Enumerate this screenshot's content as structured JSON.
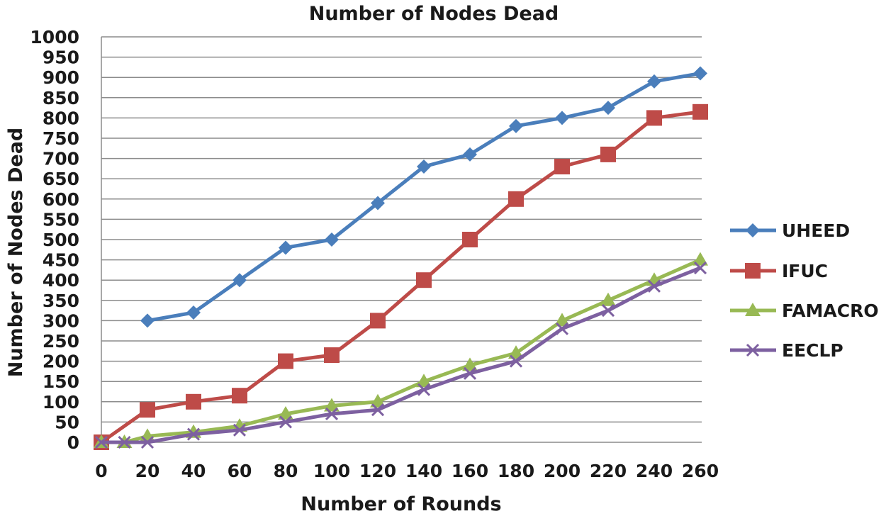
{
  "chart_data": {
    "type": "line",
    "title": "Number of Nodes Dead",
    "xlabel": "Number of Rounds",
    "ylabel": "Number of Nodes Dead",
    "x_ticks": [
      "0",
      "20",
      "40",
      "60",
      "80",
      "100",
      "120",
      "140",
      "160",
      "180",
      "200",
      "220",
      "240",
      "260"
    ],
    "y_ticks": [
      "0",
      "50",
      "100",
      "150",
      "200",
      "250",
      "300",
      "350",
      "400",
      "450",
      "500",
      "550",
      "600",
      "650",
      "700",
      "750",
      "800",
      "850",
      "900",
      "950",
      "1000"
    ],
    "xlim": [
      0,
      260
    ],
    "ylim": [
      0,
      1000
    ],
    "grid": "horizontal",
    "legend_position": "right",
    "series": [
      {
        "name": "UHEED",
        "color": "#4a7ebb",
        "marker": "diamond",
        "points": [
          [
            20,
            300
          ],
          [
            40,
            320
          ],
          [
            60,
            400
          ],
          [
            80,
            480
          ],
          [
            100,
            500
          ],
          [
            120,
            590
          ],
          [
            140,
            680
          ],
          [
            160,
            710
          ],
          [
            180,
            780
          ],
          [
            200,
            800
          ],
          [
            220,
            825
          ],
          [
            240,
            890
          ],
          [
            260,
            910
          ]
        ]
      },
      {
        "name": "IFUC",
        "color": "#be4b48",
        "marker": "square",
        "points": [
          [
            0,
            0
          ],
          [
            20,
            80
          ],
          [
            40,
            100
          ],
          [
            60,
            115
          ],
          [
            80,
            200
          ],
          [
            100,
            215
          ],
          [
            120,
            300
          ],
          [
            140,
            400
          ],
          [
            160,
            500
          ],
          [
            180,
            600
          ],
          [
            200,
            680
          ],
          [
            220,
            710
          ],
          [
            240,
            800
          ],
          [
            260,
            815
          ]
        ]
      },
      {
        "name": "FAMACRO",
        "color": "#98b954",
        "marker": "triangle",
        "points": [
          [
            0,
            0
          ],
          [
            10,
            0
          ],
          [
            20,
            15
          ],
          [
            40,
            25
          ],
          [
            60,
            40
          ],
          [
            80,
            70
          ],
          [
            100,
            90
          ],
          [
            120,
            100
          ],
          [
            140,
            150
          ],
          [
            160,
            190
          ],
          [
            180,
            220
          ],
          [
            200,
            300
          ],
          [
            220,
            350
          ],
          [
            240,
            400
          ],
          [
            260,
            450
          ]
        ]
      },
      {
        "name": "EECLP",
        "color": "#7d60a0",
        "marker": "x",
        "points": [
          [
            0,
            0
          ],
          [
            10,
            0
          ],
          [
            20,
            0
          ],
          [
            40,
            20
          ],
          [
            60,
            30
          ],
          [
            80,
            50
          ],
          [
            100,
            70
          ],
          [
            120,
            80
          ],
          [
            140,
            130
          ],
          [
            160,
            170
          ],
          [
            180,
            200
          ],
          [
            200,
            280
          ],
          [
            220,
            325
          ],
          [
            240,
            385
          ],
          [
            260,
            430
          ]
        ]
      }
    ]
  }
}
